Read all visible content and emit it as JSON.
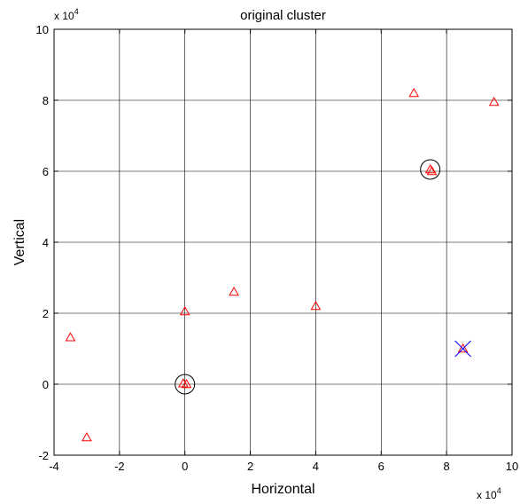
{
  "chart_data": {
    "type": "scatter",
    "title": "original cluster",
    "xlabel": "Horizontal",
    "ylabel": "Vertical",
    "x_multiplier": "x 10",
    "x_multiplier_exp": "4",
    "y_multiplier": "x 10",
    "y_multiplier_exp": "4",
    "xlim": [
      -4,
      10
    ],
    "ylim": [
      -2,
      10
    ],
    "xticks": [
      -4,
      -2,
      0,
      2,
      4,
      6,
      8,
      10
    ],
    "yticks": [
      -2,
      0,
      2,
      4,
      6,
      8,
      10
    ],
    "grid": true,
    "series": [
      {
        "marker": "triangle",
        "color": "#ff0000",
        "points": [
          [
            -3.5,
            1.32
          ],
          [
            -3.0,
            -1.5
          ],
          [
            0.0,
            2.05
          ],
          [
            -0.05,
            0.02
          ],
          [
            0.05,
            0.0
          ],
          [
            1.5,
            2.6
          ],
          [
            4.0,
            2.2
          ],
          [
            7.0,
            8.2
          ],
          [
            7.5,
            6.05
          ],
          [
            7.55,
            6.0
          ],
          [
            9.45,
            7.95
          ],
          [
            8.5,
            1.0
          ]
        ]
      },
      {
        "marker": "x",
        "color": "#0000ff",
        "points": [
          [
            8.5,
            1.0
          ]
        ]
      },
      {
        "marker": "circle",
        "color": "#000000",
        "points": [
          [
            0.0,
            0.0
          ],
          [
            7.5,
            6.05
          ]
        ]
      }
    ]
  }
}
